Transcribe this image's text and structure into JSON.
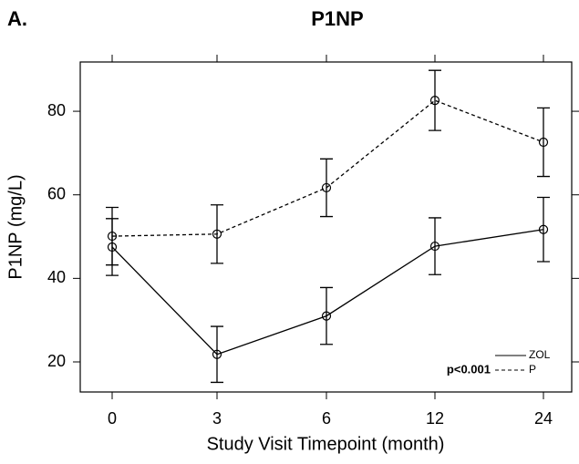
{
  "chart_data": {
    "type": "line",
    "panel_label": "A.",
    "title": "P1NP",
    "x_label": "Study Visit Timepoint (month)",
    "y_label": "P1NP (mg/L)",
    "categories": [
      "0",
      "3",
      "6",
      "12",
      "24"
    ],
    "series": [
      {
        "name": "ZOL",
        "color": "#000000",
        "dash": "solid",
        "values": [
          47.5,
          21.8,
          31,
          47.7,
          51.7
        ],
        "errors": [
          6.8,
          6.7,
          6.8,
          6.8,
          7.7
        ]
      },
      {
        "name": "P",
        "color": "#000000",
        "dash": "dashed",
        "values": [
          50.1,
          50.6,
          61.7,
          82.6,
          72.6
        ],
        "errors": [
          6.9,
          7,
          6.9,
          7.2,
          8.2
        ]
      }
    ],
    "annotation": "p<0.001",
    "ylim": [
      12.8,
      91.8
    ],
    "yticks": [
      20,
      40,
      60,
      80
    ],
    "grid": false,
    "legend": "lower right"
  }
}
